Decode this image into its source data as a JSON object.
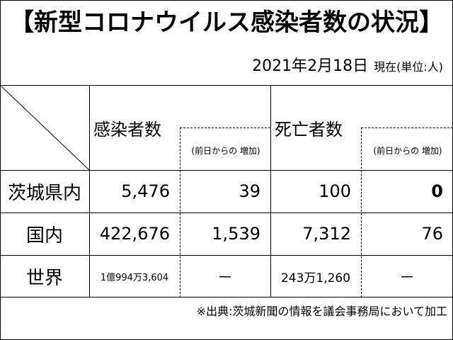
{
  "title": "【新型コロナウイルス感染者数の状況】",
  "date": "2021年2月18日",
  "date_status": "現在(単位:人)",
  "headers": {
    "infected": "感染者数",
    "infected_sub": "(前日からの 増加)",
    "deaths": "死亡者数",
    "deaths_sub": "(前日からの 増加)"
  },
  "rows": [
    {
      "label": "茨城県内",
      "infected": "5,476",
      "infected_increase": "39",
      "deaths": "100",
      "deaths_increase": "0"
    },
    {
      "label": "国内",
      "infected": "422,676",
      "infected_increase": "1,539",
      "deaths": "7,312",
      "deaths_increase": "76"
    },
    {
      "label": "世界",
      "infected": "1億994万3,604",
      "infected_increase": "－",
      "deaths": "243万1,260",
      "deaths_increase": "－"
    }
  ],
  "source": "※出典:茨城新聞の情報を議会事務局において加工"
}
